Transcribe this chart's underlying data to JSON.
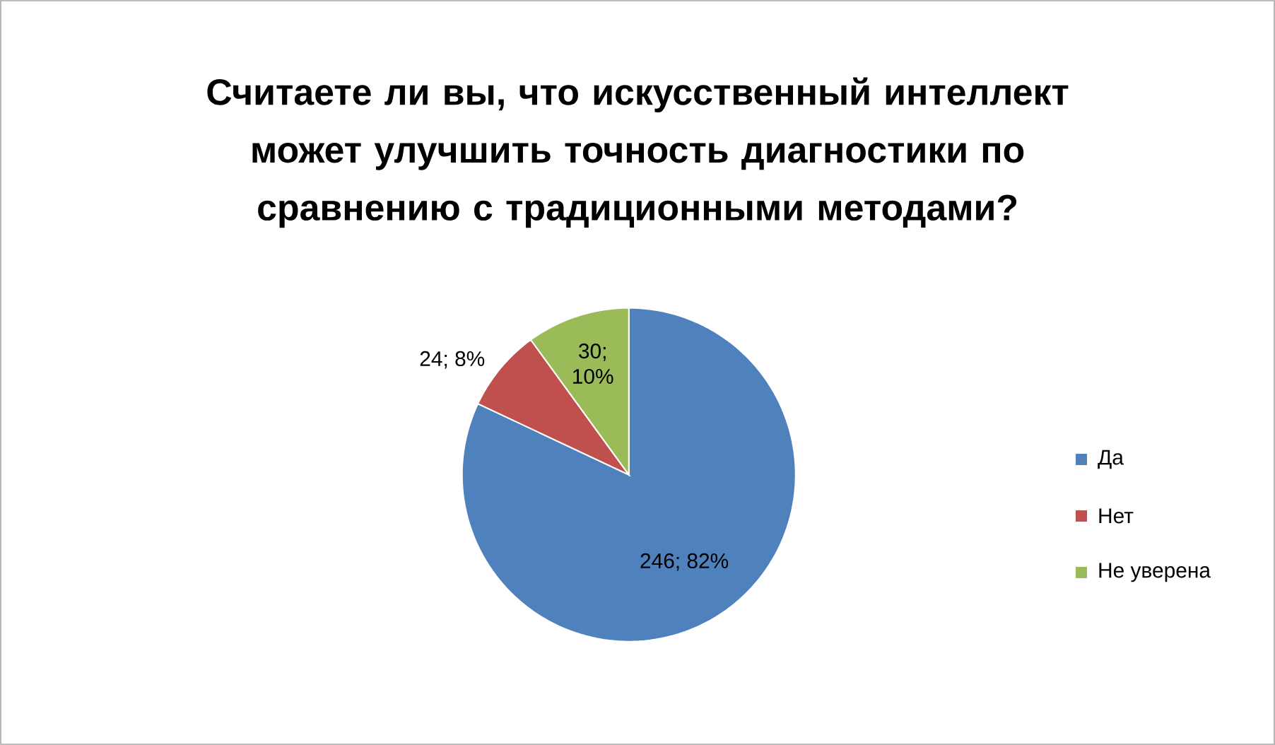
{
  "chart_data": {
    "type": "pie",
    "title": "Считаете ли вы, что искусственный интеллект может улучшить точность диагностики по сравнению с традиционными методами?",
    "categories": [
      "Да",
      "Нет",
      "Не уверена"
    ],
    "values": [
      246,
      24,
      30
    ],
    "colors": [
      "#4f81bd",
      "#c0504d",
      "#9bbb59"
    ],
    "value_labels": [
      "246; 82%",
      "24; 8%",
      "30; 10%"
    ],
    "legend": "right"
  }
}
